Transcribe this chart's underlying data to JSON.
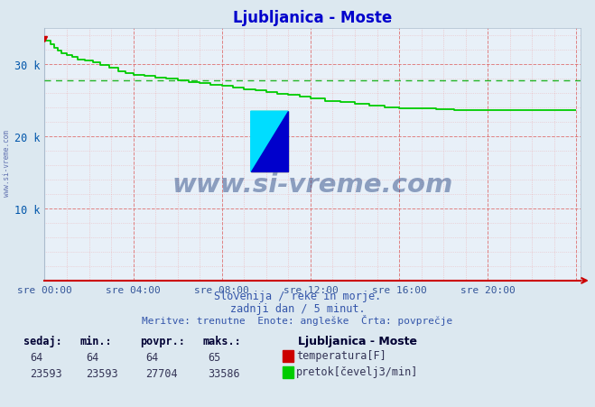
{
  "title": "Ljubljanica - Moste",
  "title_color": "#0000cc",
  "bg_color": "#dce8f0",
  "plot_bg_color": "#e8f0f8",
  "avg_line_color": "#00aa00",
  "avg_value": 27704,
  "line_color": "#00cc00",
  "xmin": 0,
  "xmax": 288,
  "ymin": 0,
  "ymax": 35000,
  "yticks": [
    0,
    10000,
    20000,
    30000
  ],
  "ytick_labels": [
    "",
    "10 k",
    "20 k",
    "30 k"
  ],
  "xtick_positions": [
    0,
    48,
    96,
    144,
    192,
    240
  ],
  "xtick_labels": [
    "sre 00:00",
    "sre 04:00",
    "sre 08:00",
    "sre 12:00",
    "sre 16:00",
    "sre 20:00"
  ],
  "watermark_text": "www.si-vreme.com",
  "watermark_color": "#1a3a7a",
  "watermark_alpha": 0.45,
  "subtitle1": "Slovenija / reke in morje.",
  "subtitle2": "zadnji dan / 5 minut.",
  "subtitle3": "Meritve: trenutne  Enote: angleške  Črta: povprečje",
  "subtitle_color": "#3355aa",
  "legend_title": "Ljubljanica - Moste",
  "legend_color": "#000033",
  "stats_labels": [
    "sedaj:",
    "min.:",
    "povpr.:",
    "maks.:"
  ],
  "stats_temp": [
    64,
    64,
    64,
    65
  ],
  "stats_flow": [
    23593,
    23593,
    27704,
    33586
  ],
  "temp_color": "#cc0000",
  "flow_color": "#00cc00",
  "temp_label": "temperatura[F]",
  "flow_label": "pretok[čevelj3/min]",
  "flow_data_x": [
    0,
    3,
    5,
    7,
    9,
    12,
    15,
    18,
    22,
    26,
    30,
    35,
    40,
    44,
    48,
    54,
    60,
    66,
    72,
    78,
    84,
    90,
    96,
    102,
    108,
    114,
    120,
    126,
    132,
    138,
    144,
    152,
    160,
    168,
    176,
    184,
    192,
    202,
    212,
    222,
    232,
    242,
    252,
    262,
    272,
    282,
    288
  ],
  "flow_data_y": [
    33500,
    33200,
    32700,
    32200,
    31800,
    31500,
    31200,
    30900,
    30600,
    30400,
    30200,
    29800,
    29400,
    29000,
    28700,
    28500,
    28300,
    28100,
    27900,
    27700,
    27500,
    27300,
    27100,
    26900,
    26700,
    26500,
    26300,
    26100,
    25900,
    25700,
    25500,
    25200,
    24900,
    24700,
    24500,
    24200,
    24000,
    23900,
    23800,
    23700,
    23650,
    23620,
    23600,
    23593,
    23593,
    23593,
    23593
  ]
}
